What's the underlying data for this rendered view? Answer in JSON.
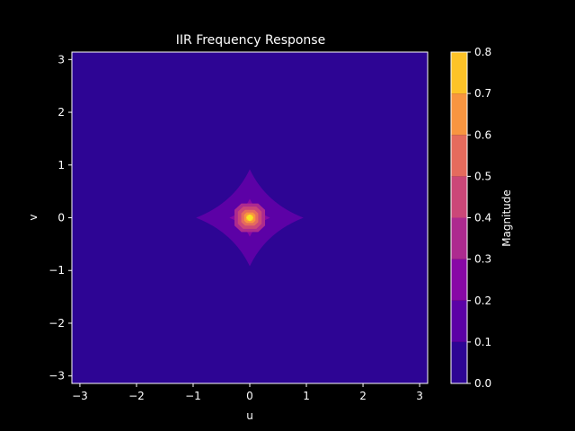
{
  "chart_data": {
    "type": "heatmap",
    "subtype": "filled-contour",
    "title": "IIR Frequency Response",
    "xlabel": "u",
    "ylabel": "v",
    "xlim": [
      -3.14159,
      3.14159
    ],
    "ylim": [
      -3.14159,
      3.14159
    ],
    "xticks": [
      -3,
      -2,
      -1,
      0,
      1,
      2,
      3
    ],
    "yticks": [
      -3,
      -2,
      -1,
      0,
      1,
      2,
      3
    ],
    "grid": false,
    "colorbar": {
      "label": "Magnitude",
      "levels": [
        0.0,
        0.1,
        0.2,
        0.3,
        0.4,
        0.5,
        0.6,
        0.7,
        0.8
      ],
      "tick_labels": [
        "0.0",
        "0.1",
        "0.2",
        "0.3",
        "0.4",
        "0.5",
        "0.6",
        "0.7",
        "0.8"
      ],
      "colors": [
        "#2d0594",
        "#5c01a6",
        "#8808a6",
        "#ad2a8f",
        "#cb4778",
        "#e56b5d",
        "#f89540",
        "#fdc328",
        "#f5e625"
      ]
    },
    "contours": [
      {
        "range": [
          0.1,
          0.2
        ],
        "extent_u": 0.95,
        "extent_v": 0.92,
        "shape": "star"
      },
      {
        "range": [
          0.2,
          0.3
        ],
        "extent_u": 0.36,
        "extent_v": 0.36,
        "shape": "star"
      },
      {
        "range": [
          0.3,
          0.4
        ],
        "extent_u": 0.27,
        "extent_v": 0.27,
        "shape": "diamond"
      },
      {
        "range": [
          0.4,
          0.5
        ],
        "extent_u": 0.21,
        "extent_v": 0.21,
        "shape": "diamond"
      },
      {
        "range": [
          0.5,
          0.6
        ],
        "extent_u": 0.15,
        "extent_v": 0.15,
        "shape": "diamond"
      },
      {
        "range": [
          0.6,
          0.7
        ],
        "extent_u": 0.1,
        "extent_v": 0.1,
        "shape": "diamond"
      },
      {
        "range": [
          0.7,
          0.8
        ],
        "extent_u": 0.06,
        "extent_v": 0.06,
        "shape": "diamond"
      }
    ],
    "peak": {
      "u": 0,
      "v": 0,
      "value": 0.78
    }
  }
}
